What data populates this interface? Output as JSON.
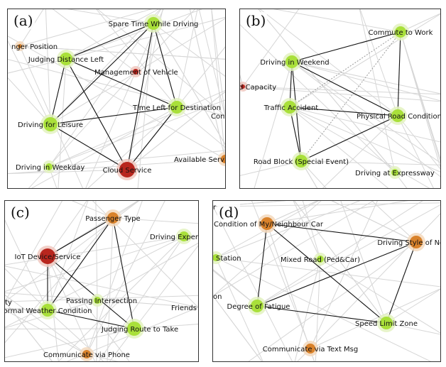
{
  "colors": {
    "green": "#a9e03a",
    "green_halo": "#e3f2c0",
    "red": "#b8261e",
    "red_halo": "#f0c8c0",
    "orange": "#d9822b",
    "orange_halo": "#f3d8bc"
  },
  "panels": [
    {
      "id": "a",
      "label": "(a)",
      "nodes": [
        {
          "id": "spare_time",
          "label": "Spare Time While Driving",
          "color": "green"
        },
        {
          "id": "passenger_position",
          "label": "nger Position",
          "color": "orange"
        },
        {
          "id": "judging_distance",
          "label": "Judging Distance Left",
          "color": "green"
        },
        {
          "id": "management_vehicle",
          "label": "Management of Vehicle",
          "color": "red"
        },
        {
          "id": "time_left",
          "label": "Time Left for Destination",
          "color": "green"
        },
        {
          "id": "con",
          "label": "Con",
          "color": "none"
        },
        {
          "id": "driving_leisure",
          "label": "Driving for Leisure",
          "color": "green"
        },
        {
          "id": "driving_weekday",
          "label": "Driving in Weekday",
          "color": "green"
        },
        {
          "id": "cloud_service",
          "label": "Cloud Service",
          "color": "red"
        },
        {
          "id": "available_servi",
          "label": "Available Servi",
          "color": "orange"
        }
      ]
    },
    {
      "id": "b",
      "label": "(b)",
      "nodes": [
        {
          "id": "commute_work",
          "label": "Commute to Work",
          "color": "green"
        },
        {
          "id": "driving_weekend",
          "label": "Driving in Weekend",
          "color": "green"
        },
        {
          "id": "road_capacity",
          "label": "d Capacity",
          "color": "red"
        },
        {
          "id": "traffic_accident",
          "label": "Traffic Accident",
          "color": "green"
        },
        {
          "id": "physical_road",
          "label": "Physical Road Condition",
          "color": "green"
        },
        {
          "id": "road_block",
          "label": "Road Block (Special Event)",
          "color": "green"
        },
        {
          "id": "driving_expressway",
          "label": "Driving at Expressway",
          "color": "green"
        }
      ]
    },
    {
      "id": "c",
      "label": "(c)",
      "nodes": [
        {
          "id": "passenger_type",
          "label": "Passenger Type",
          "color": "orange"
        },
        {
          "id": "driving_exper",
          "label": "Driving Exper",
          "color": "green"
        },
        {
          "id": "iot_device",
          "label": "IoT Device/Service",
          "color": "red"
        },
        {
          "id": "ty",
          "label": "ty",
          "color": "none"
        },
        {
          "id": "normal_weather",
          "label": "ormal Weather Condition",
          "color": "green"
        },
        {
          "id": "passing_intersection",
          "label": "Passing Intersection",
          "color": "green"
        },
        {
          "id": "friends",
          "label": "Friends",
          "color": "none"
        },
        {
          "id": "judging_route",
          "label": "Judging Route to Take",
          "color": "green"
        },
        {
          "id": "communicate_phone",
          "label": "Communicate via Phone",
          "color": "orange"
        }
      ]
    },
    {
      "id": "d",
      "label": "(d)",
      "nodes": [
        {
          "id": "condition_car",
          "label": "Condition of My/Neighbour Car",
          "color": "orange"
        },
        {
          "id": "driving_style",
          "label": "Driving Style of Neigh",
          "color": "orange"
        },
        {
          "id": "station",
          "label": "Station",
          "color": "green"
        },
        {
          "id": "mixed_road",
          "label": "Mixed Road (Ped&Car)",
          "color": "green"
        },
        {
          "id": "on",
          "label": "on",
          "color": "none"
        },
        {
          "id": "degree_fatigue",
          "label": "Degree of Fatigue",
          "color": "green"
        },
        {
          "id": "speed_limit",
          "label": "Speed Limit Zone",
          "color": "green"
        },
        {
          "id": "communicate_text",
          "label": "Communicate via Text Msg",
          "color": "orange"
        },
        {
          "id": "r",
          "label": "r",
          "color": "none"
        }
      ]
    }
  ]
}
